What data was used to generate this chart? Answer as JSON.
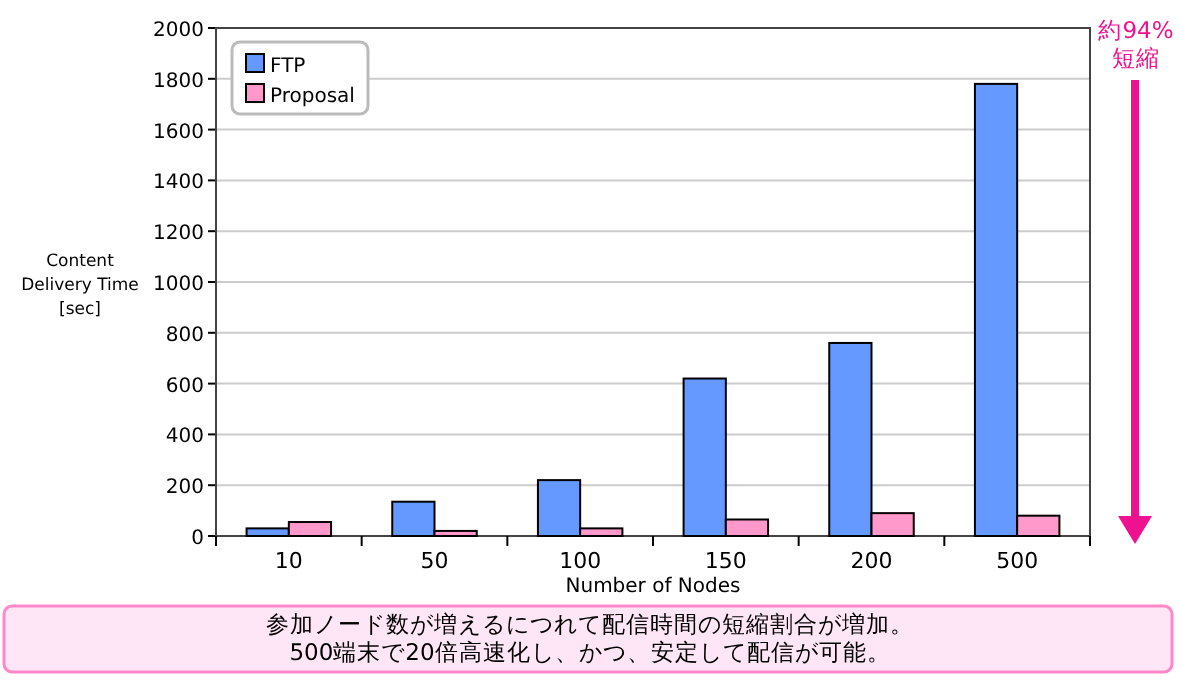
{
  "chart_data": {
    "type": "bar",
    "xlabel": "Number of Nodes",
    "ylabel": "Content\nDelivery Time\n[sec]",
    "categories": [
      "10",
      "50",
      "100",
      "150",
      "200",
      "500"
    ],
    "series": [
      {
        "name": "FTP",
        "color": "#6699ff",
        "values": [
          30,
          135,
          220,
          620,
          760,
          1780
        ]
      },
      {
        "name": "Proposal",
        "color": "#ff99cc",
        "values": [
          55,
          20,
          30,
          65,
          90,
          80
        ]
      }
    ],
    "ylim": [
      0,
      2000
    ],
    "yticks": [
      0,
      200,
      400,
      600,
      800,
      1000,
      1200,
      1400,
      1600,
      1800,
      2000
    ],
    "grid": "y",
    "legend": "top left",
    "annotations": [
      "約94%\n短縮",
      "参加ノード数が増えるにつれて配信時間の短縮割合が増加。\n500端末で20倍高速化し、かつ、安定して配信が可能。"
    ]
  }
}
